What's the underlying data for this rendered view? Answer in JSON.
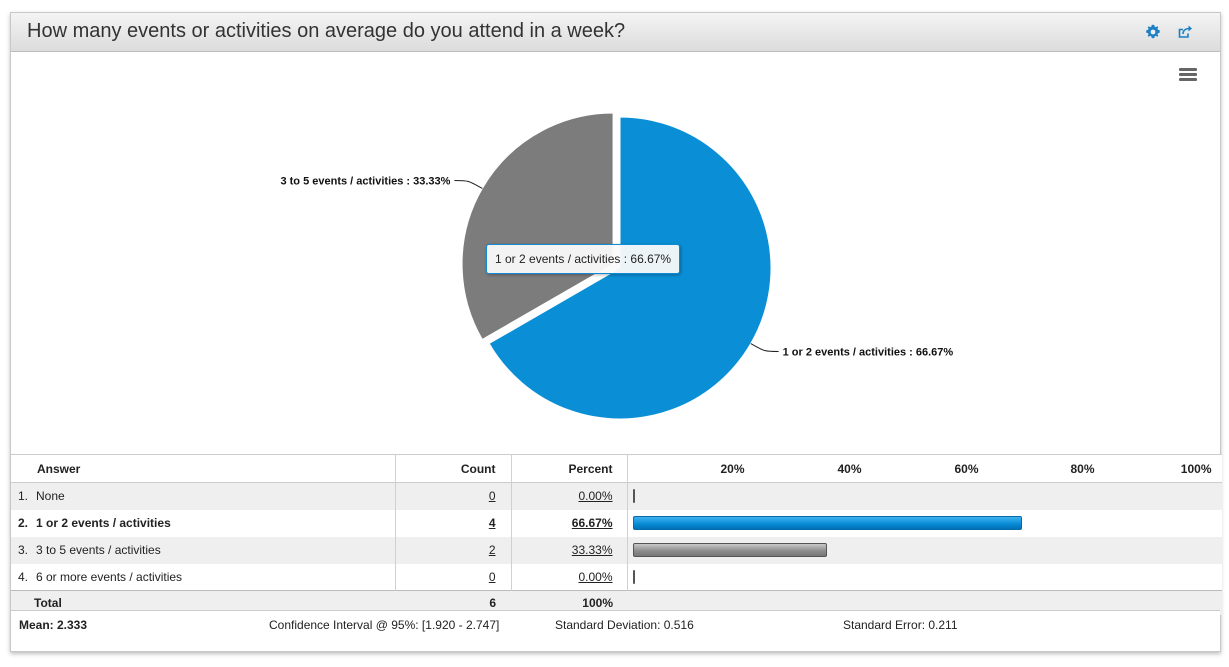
{
  "question": {
    "title": "How many events or activities on average do you attend in a week?"
  },
  "colors": {
    "blue": "#0a8fd6",
    "gray": "#7c7c7c"
  },
  "chart_data": {
    "type": "pie",
    "title": "How many events or activities on average do you attend in a week?",
    "slices": [
      {
        "label": "1 or 2 events / activities",
        "value": 66.67,
        "color": "#0a8fd6",
        "data_label": "1 or 2 events / activities : 66.67%",
        "sliced": false
      },
      {
        "label": "3 to 5 events / activities",
        "value": 33.33,
        "color": "#7c7c7c",
        "data_label": "3 to 5 events / activities : 33.33%",
        "sliced": true
      }
    ],
    "tooltip": "1 or 2 events / activities : 66.67%"
  },
  "table": {
    "headers": {
      "answer": "Answer",
      "count": "Count",
      "percent": "Percent"
    },
    "ticks": [
      "20%",
      "40%",
      "60%",
      "80%",
      "100%"
    ],
    "rows": [
      {
        "num": "1.",
        "answer": "None",
        "count": "0",
        "percent": "0.00%",
        "value": 0,
        "color": "gray"
      },
      {
        "num": "2.",
        "answer": "1 or 2 events / activities",
        "count": "4",
        "percent": "66.67%",
        "value": 66.67,
        "color": "blue"
      },
      {
        "num": "3.",
        "answer": "3 to 5 events / activities",
        "count": "2",
        "percent": "33.33%",
        "value": 33.33,
        "color": "gray"
      },
      {
        "num": "4.",
        "answer": "6 or more events / activities",
        "count": "0",
        "percent": "0.00%",
        "value": 0,
        "color": "gray"
      }
    ],
    "total": {
      "label": "Total",
      "count": "6",
      "percent": "100%"
    }
  },
  "stats": {
    "mean": "Mean: 2.333",
    "ci": "Confidence Interval @ 95%: [1.920 - 2.747]",
    "sd": "Standard Deviation: 0.516",
    "se": "Standard Error: 0.211"
  }
}
